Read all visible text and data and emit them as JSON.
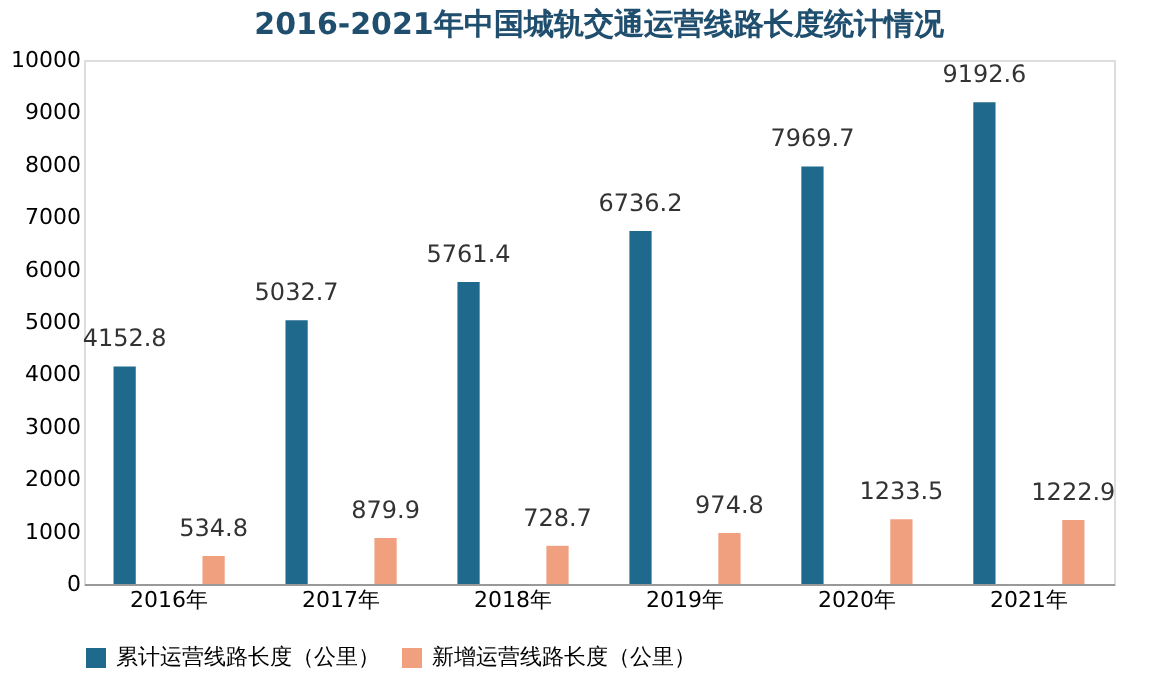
{
  "chart_data": {
    "type": "bar",
    "title": "2016-2021年中国城轨交通运营线路长度统计情况",
    "categories": [
      "2016年",
      "2017年",
      "2018年",
      "2019年",
      "2020年",
      "2021年"
    ],
    "series": [
      {
        "name": "累计运营线路长度（公里）",
        "color": "#1f6a8c",
        "values": [
          4152.8,
          5032.7,
          5761.4,
          6736.2,
          7969.7,
          9192.6
        ]
      },
      {
        "name": "新增运营线路长度（公里）",
        "color": "#f0a07e",
        "values": [
          534.8,
          879.9,
          728.7,
          974.8,
          1233.5,
          1222.9
        ]
      }
    ],
    "ylim": [
      0,
      10000
    ],
    "yticks": [
      0,
      1000,
      2000,
      3000,
      4000,
      5000,
      6000,
      7000,
      8000,
      9000,
      10000
    ],
    "data_labels": true,
    "legend": "bottom",
    "grid": false
  }
}
